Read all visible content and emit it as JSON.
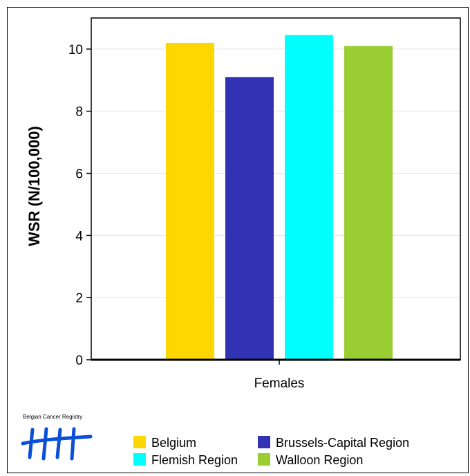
{
  "chart_data": {
    "type": "bar",
    "ylabel": "WSR (N/100,000)",
    "category": "Females",
    "ylim": [
      0,
      11
    ],
    "yticks": [
      0,
      2,
      4,
      6,
      8,
      10
    ],
    "grid": true,
    "legend_position": "bottom",
    "series": [
      {
        "name": "Belgium",
        "value": 10.2,
        "color": "#FFD700"
      },
      {
        "name": "Brussels-Capital Region",
        "value": 9.1,
        "color": "#3232B4"
      },
      {
        "name": "Flemish Region",
        "value": 10.45,
        "color": "#00FFFF"
      },
      {
        "name": "Walloon Region",
        "value": 10.1,
        "color": "#9ACD32"
      }
    ]
  },
  "logo": {
    "caption": "Belgian Cancer Registry",
    "color": "#0A4FD8"
  }
}
